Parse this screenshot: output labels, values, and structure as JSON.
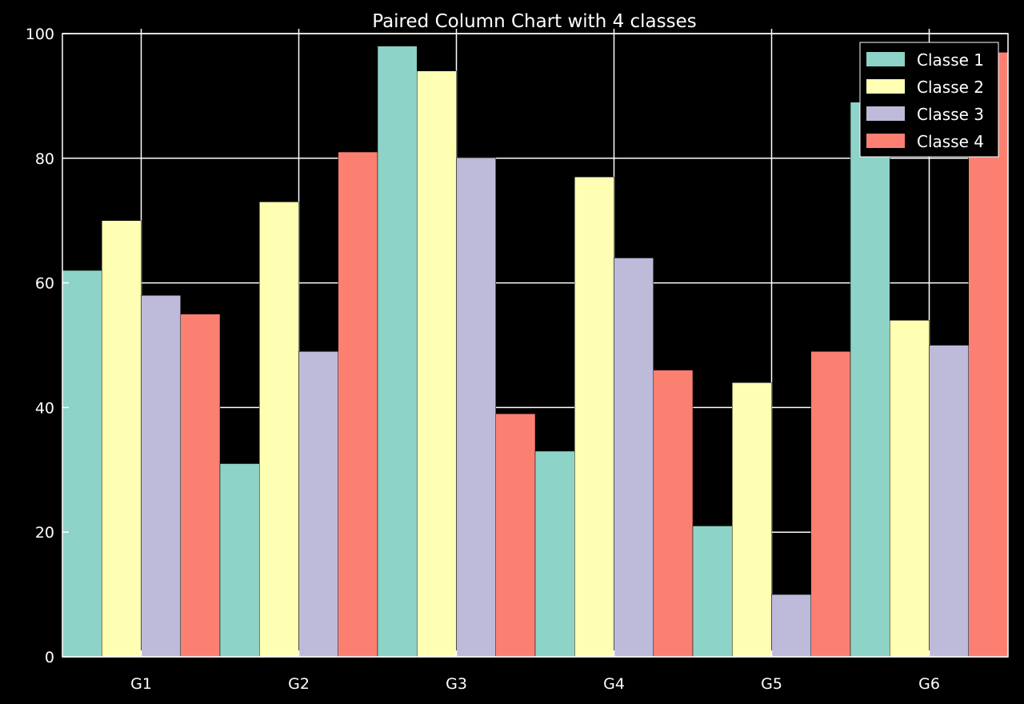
{
  "chart_data": {
    "type": "bar",
    "title": "Paired Column Chart with 4 classes",
    "xlabel": "",
    "ylabel": "",
    "categories": [
      "G1",
      "G2",
      "G3",
      "G4",
      "G5",
      "G6"
    ],
    "series": [
      {
        "name": "Classe 1",
        "color": "#8dd3c7",
        "values": [
          62,
          31,
          98,
          33,
          21,
          89
        ]
      },
      {
        "name": "Classe 2",
        "color": "#ffffb3",
        "values": [
          70,
          73,
          94,
          77,
          44,
          54
        ]
      },
      {
        "name": "Classe 3",
        "color": "#bebada",
        "values": [
          58,
          49,
          80,
          64,
          10,
          50
        ]
      },
      {
        "name": "Classe 4",
        "color": "#fb8072",
        "values": [
          55,
          81,
          39,
          46,
          49,
          97
        ]
      }
    ],
    "ylim": [
      0,
      100
    ],
    "yticks": [
      0,
      20,
      40,
      60,
      80,
      100
    ],
    "grid": true,
    "legend": "top-right",
    "background": "#000000",
    "foreground": "#ffffff"
  }
}
